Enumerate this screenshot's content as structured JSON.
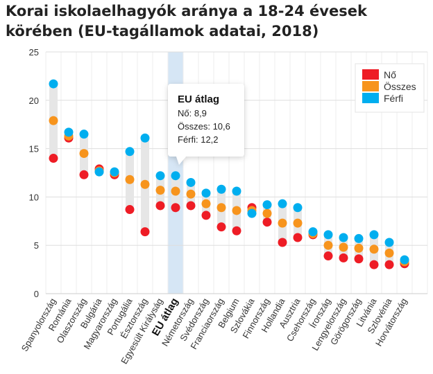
{
  "chart_data": {
    "type": "scatter",
    "subtype": "dot-range",
    "title": "Korai iskolaelhagyók aránya a 18-24 évesek körében (EU-tagállamok adatai, 2018)",
    "xlabel": "",
    "ylabel": "",
    "ylim": [
      0,
      25
    ],
    "yticks": [
      0,
      5,
      10,
      15,
      20,
      25
    ],
    "grid": true,
    "legend_position": "top-right",
    "highlight_category": "EU átlag",
    "categories": [
      "Spanyolország",
      "Románia",
      "Olaszország",
      "Bulgária",
      "Magyarország",
      "Portugália",
      "Észtország",
      "Egyesült Királyság",
      "EU átlag",
      "Németország",
      "Svédország",
      "Franciaország",
      "Belgium",
      "Szlovákia",
      "Finnország",
      "Hollandia",
      "Ausztria",
      "Csehország",
      "Írország",
      "Lengyelország",
      "Görögország",
      "Litvánia",
      "Szlovénia",
      "Horvátország"
    ],
    "series": [
      {
        "name": "Nő",
        "color": "#ee1c25",
        "values": [
          14.0,
          16.1,
          12.3,
          12.9,
          12.3,
          8.7,
          6.4,
          9.1,
          8.9,
          9.1,
          8.1,
          6.9,
          6.5,
          8.9,
          7.4,
          5.3,
          5.8,
          6.1,
          3.9,
          3.7,
          3.6,
          3.0,
          3.0,
          3.1
        ]
      },
      {
        "name": "Összes",
        "color": "#f7941d",
        "values": [
          17.9,
          16.3,
          14.5,
          12.7,
          12.5,
          11.8,
          11.3,
          10.7,
          10.6,
          10.3,
          9.3,
          8.9,
          8.6,
          8.6,
          8.3,
          7.3,
          7.3,
          6.2,
          5.0,
          4.8,
          4.7,
          4.6,
          4.2,
          3.3
        ]
      },
      {
        "name": "Férfi",
        "color": "#00aeef",
        "values": [
          21.7,
          16.7,
          16.5,
          12.6,
          12.6,
          14.7,
          16.1,
          12.2,
          12.2,
          11.5,
          10.4,
          10.8,
          10.6,
          8.3,
          9.2,
          9.3,
          8.9,
          6.4,
          6.1,
          5.8,
          5.7,
          6.1,
          5.3,
          3.5
        ]
      }
    ],
    "tooltip": {
      "title": "EU átlag",
      "lines": [
        "Nő: 8,9",
        "Összes: 10,6",
        "Férfi: 12,2"
      ]
    }
  },
  "colors": {
    "range_bar": "#e6e6e6",
    "highlight_band": "#d6e6f5",
    "grid": "#e6e6e6"
  }
}
